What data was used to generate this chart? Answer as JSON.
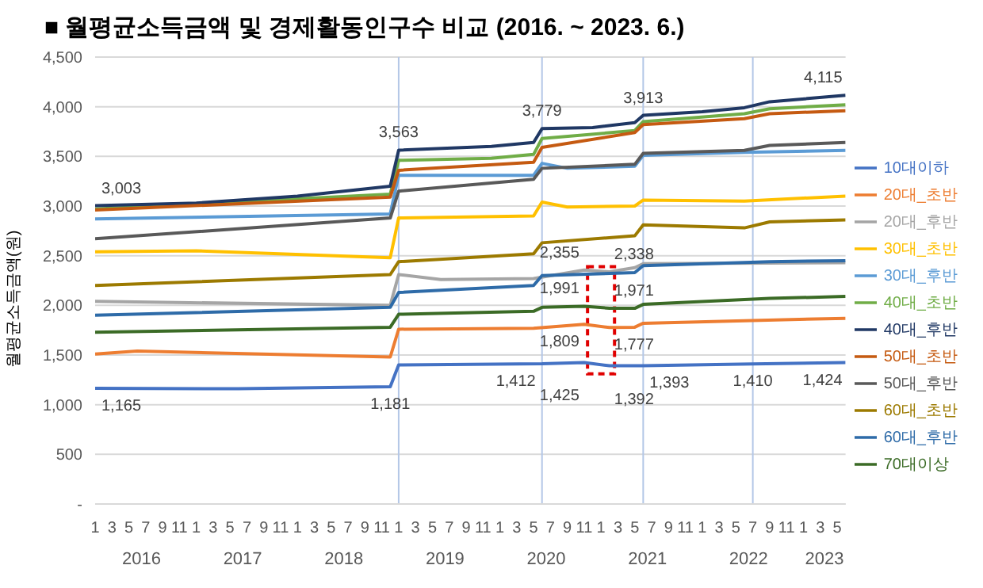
{
  "chart_data": {
    "type": "line",
    "title": "■ 월평균소득금액 및 경제활동인구수 비교 (2016. ~ 2023. 6.)",
    "ylabel": "월평균소득금액(원)",
    "xlim": [
      "2016-01",
      "2023-06"
    ],
    "xticks": [
      {
        "value": "2016-01",
        "label": "1"
      },
      {
        "value": "2016-03",
        "label": "3"
      },
      {
        "value": "2016-05",
        "label": "5"
      },
      {
        "value": "2016-07",
        "label": "7"
      },
      {
        "value": "2016-09",
        "label": "9"
      },
      {
        "value": "2016-11",
        "label": "11"
      },
      {
        "value": "2017-01",
        "label": "1"
      },
      {
        "value": "2017-03",
        "label": "3"
      },
      {
        "value": "2017-05",
        "label": "5"
      },
      {
        "value": "2017-07",
        "label": "7"
      },
      {
        "value": "2017-09",
        "label": "9"
      },
      {
        "value": "2017-11",
        "label": "11"
      },
      {
        "value": "2018-01",
        "label": "1"
      },
      {
        "value": "2018-03",
        "label": "3"
      },
      {
        "value": "2018-05",
        "label": "5"
      },
      {
        "value": "2018-07",
        "label": "7"
      },
      {
        "value": "2018-09",
        "label": "9"
      },
      {
        "value": "2018-11",
        "label": "11"
      },
      {
        "value": "2019-01",
        "label": "1"
      },
      {
        "value": "2019-03",
        "label": "3"
      },
      {
        "value": "2019-05",
        "label": "5"
      },
      {
        "value": "2019-07",
        "label": "7"
      },
      {
        "value": "2019-09",
        "label": "9"
      },
      {
        "value": "2019-11",
        "label": "11"
      },
      {
        "value": "2020-01",
        "label": "1"
      },
      {
        "value": "2020-03",
        "label": "3"
      },
      {
        "value": "2020-05",
        "label": "5"
      },
      {
        "value": "2020-07",
        "label": "7"
      },
      {
        "value": "2020-09",
        "label": "9"
      },
      {
        "value": "2020-11",
        "label": "11"
      },
      {
        "value": "2021-01",
        "label": "1"
      },
      {
        "value": "2021-03",
        "label": "3"
      },
      {
        "value": "2021-05",
        "label": "5"
      },
      {
        "value": "2021-07",
        "label": "7"
      },
      {
        "value": "2021-09",
        "label": "9"
      },
      {
        "value": "2021-11",
        "label": "11"
      },
      {
        "value": "2022-01",
        "label": "1"
      },
      {
        "value": "2022-03",
        "label": "3"
      },
      {
        "value": "2022-05",
        "label": "5"
      },
      {
        "value": "2022-07",
        "label": "7"
      },
      {
        "value": "2022-09",
        "label": "9"
      },
      {
        "value": "2022-11",
        "label": "11"
      },
      {
        "value": "2023-01",
        "label": "1"
      },
      {
        "value": "2023-03",
        "label": "3"
      },
      {
        "value": "2023-05",
        "label": "5"
      }
    ],
    "ylim": [
      0,
      4500
    ],
    "yticks": [
      {
        "value": 0,
        "label": "-"
      },
      {
        "value": 500,
        "label": "500"
      },
      {
        "value": 1000,
        "label": "1,000"
      },
      {
        "value": 1500,
        "label": "1,500"
      },
      {
        "value": 2000,
        "label": "2,000"
      },
      {
        "value": 2500,
        "label": "2,500"
      },
      {
        "value": 3000,
        "label": "3,000"
      },
      {
        "value": 3500,
        "label": "3,500"
      },
      {
        "value": 4000,
        "label": "4,000"
      },
      {
        "value": 4500,
        "label": "4,500"
      }
    ],
    "grid": "y",
    "legend": "right",
    "annotations": [
      "2016",
      "2017",
      "2018",
      "2019",
      "2020",
      "2021",
      "2022",
      "2023"
    ],
    "ref_lines": [
      {
        "axis": "x",
        "value": "2019-01",
        "color": "#b4c7e7"
      },
      {
        "axis": "x",
        "value": "2020-06",
        "color": "#b4c7e7"
      },
      {
        "axis": "x",
        "value": "2021-06",
        "color": "#b4c7e7"
      },
      {
        "axis": "x",
        "value": "2022-07",
        "color": "#b4c7e7"
      }
    ],
    "series": [
      {
        "name": "10대이하",
        "color": "#4472c4",
        "x": [
          "2016-01",
          "2017-06",
          "2018-12",
          "2019-01",
          "2020-06",
          "2020-11",
          "2021-02",
          "2021-06",
          "2022-07",
          "2023-06"
        ],
        "values": [
          1165,
          1160,
          1181,
          1400,
          1412,
          1425,
          1392,
          1393,
          1410,
          1424
        ],
        "value_labels": [
          "1,165",
          null,
          "1,181",
          null,
          "1,412",
          "1,425",
          "1,392",
          "1,393",
          "1,410",
          "1,424"
        ]
      },
      {
        "name": "20대_초반",
        "color": "#ed7d31",
        "x": [
          "2016-01",
          "2016-06",
          "2018-12",
          "2019-01",
          "2020-05",
          "2020-11",
          "2021-02",
          "2021-05",
          "2021-06",
          "2023-06"
        ],
        "values": [
          1510,
          1540,
          1480,
          1760,
          1770,
          1809,
          1777,
          1780,
          1820,
          1870
        ],
        "value_labels": [
          null,
          null,
          null,
          null,
          null,
          "1,809",
          "1,777",
          null,
          null,
          null
        ]
      },
      {
        "name": "20대_후반",
        "color": "#a5a5a5",
        "x": [
          "2016-01",
          "2018-12",
          "2019-01",
          "2019-06",
          "2020-05",
          "2020-11",
          "2021-02",
          "2021-05",
          "2021-06",
          "2023-06"
        ],
        "values": [
          2040,
          2000,
          2310,
          2260,
          2270,
          2355,
          2338,
          2380,
          2420,
          2430
        ],
        "value_labels": [
          null,
          null,
          null,
          null,
          null,
          "2,355",
          "2,338",
          null,
          null,
          null
        ]
      },
      {
        "name": "30대_초반",
        "color": "#ffc000",
        "x": [
          "2016-01",
          "2017-01",
          "2018-12",
          "2019-01",
          "2020-05",
          "2020-06",
          "2020-09",
          "2021-05",
          "2021-06",
          "2022-06",
          "2023-06"
        ],
        "values": [
          2540,
          2550,
          2480,
          2880,
          2900,
          3040,
          2990,
          3000,
          3060,
          3050,
          3100
        ]
      },
      {
        "name": "30대_후반",
        "color": "#5b9bd5",
        "x": [
          "2016-01",
          "2018-12",
          "2019-01",
          "2020-05",
          "2020-06",
          "2020-09",
          "2021-05",
          "2021-06",
          "2022-06",
          "2023-06"
        ],
        "values": [
          2870,
          2920,
          3310,
          3310,
          3430,
          3380,
          3400,
          3510,
          3540,
          3560
        ]
      },
      {
        "name": "40대_초반",
        "color": "#70ad47",
        "x": [
          "2016-01",
          "2018-12",
          "2019-01",
          "2019-12",
          "2020-05",
          "2020-06",
          "2021-05",
          "2021-06",
          "2022-06",
          "2022-09",
          "2023-06"
        ],
        "values": [
          2970,
          3120,
          3460,
          3480,
          3520,
          3680,
          3760,
          3850,
          3930,
          3980,
          4020
        ]
      },
      {
        "name": "40대_후반",
        "color": "#203864",
        "x": [
          "2016-01",
          "2017-01",
          "2018-01",
          "2018-12",
          "2019-01",
          "2019-12",
          "2020-05",
          "2020-06",
          "2020-12",
          "2021-05",
          "2021-06",
          "2022-01",
          "2022-06",
          "2022-09",
          "2023-06"
        ],
        "values": [
          3003,
          3030,
          3100,
          3200,
          3563,
          3600,
          3640,
          3779,
          3790,
          3840,
          3913,
          3950,
          3990,
          4050,
          4115
        ],
        "value_labels": [
          "3,003",
          null,
          null,
          null,
          "3,563",
          null,
          null,
          "3,779",
          null,
          null,
          "3,913",
          null,
          null,
          null,
          "4,115"
        ]
      },
      {
        "name": "50대_초반",
        "color": "#c55a11",
        "x": [
          "2016-01",
          "2018-12",
          "2019-01",
          "2020-05",
          "2020-06",
          "2021-05",
          "2021-06",
          "2022-06",
          "2022-09",
          "2023-06"
        ],
        "values": [
          2960,
          3090,
          3360,
          3440,
          3590,
          3740,
          3820,
          3880,
          3930,
          3960
        ]
      },
      {
        "name": "50대_후반",
        "color": "#595959",
        "x": [
          "2016-01",
          "2018-12",
          "2019-01",
          "2020-05",
          "2020-06",
          "2021-05",
          "2021-06",
          "2022-06",
          "2022-09",
          "2023-06"
        ],
        "values": [
          2670,
          2880,
          3150,
          3270,
          3380,
          3420,
          3530,
          3560,
          3610,
          3640
        ]
      },
      {
        "name": "60대_초반",
        "color": "#9c7a00",
        "x": [
          "2016-01",
          "2018-12",
          "2019-01",
          "2020-05",
          "2020-06",
          "2021-05",
          "2021-06",
          "2022-06",
          "2022-09",
          "2023-06"
        ],
        "values": [
          2200,
          2310,
          2440,
          2520,
          2630,
          2700,
          2810,
          2780,
          2840,
          2860
        ]
      },
      {
        "name": "60대_후반",
        "color": "#2e6ba8",
        "x": [
          "2016-01",
          "2018-12",
          "2019-01",
          "2020-05",
          "2020-06",
          "2021-05",
          "2021-06",
          "2022-09",
          "2023-06"
        ],
        "values": [
          1900,
          1980,
          2130,
          2200,
          2300,
          2330,
          2400,
          2440,
          2450
        ]
      },
      {
        "name": "70대이상",
        "color": "#3b6b26",
        "x": [
          "2016-01",
          "2018-12",
          "2019-01",
          "2020-05",
          "2020-06",
          "2020-11",
          "2021-02",
          "2021-05",
          "2021-06",
          "2022-09",
          "2023-06"
        ],
        "values": [
          1730,
          1780,
          1910,
          1940,
          1980,
          1991,
          1971,
          1970,
          2010,
          2070,
          2090
        ],
        "value_labels": [
          null,
          null,
          null,
          null,
          null,
          "1,991",
          "1,971",
          null,
          null,
          null,
          null
        ]
      }
    ]
  }
}
